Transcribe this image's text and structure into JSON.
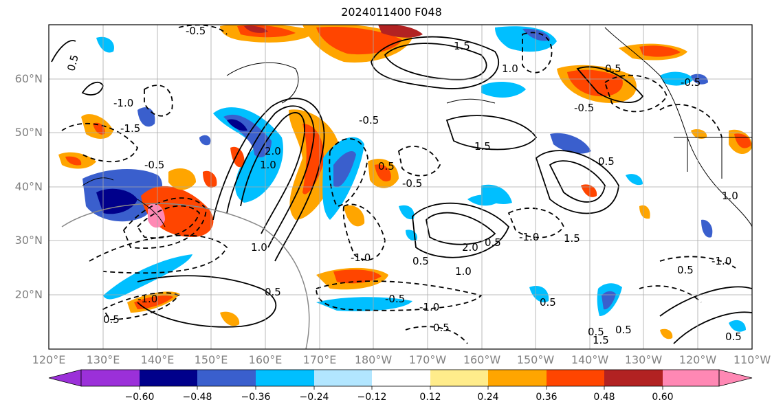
{
  "title": "2024011400 F048",
  "map": {
    "lat_ticks": [
      "60°N",
      "50°N",
      "40°N",
      "30°N",
      "20°N"
    ],
    "lon_ticks": [
      "120°E",
      "130°E",
      "140°E",
      "150°E",
      "160°E",
      "170°E",
      "180°W",
      "170°W",
      "160°W",
      "150°W",
      "140°W",
      "130°W",
      "120°W",
      "110°W"
    ],
    "contour_labels": [
      "0.5",
      "1.0",
      "1.5",
      "2.0",
      "-0.5",
      "-1.0",
      "-1.5",
      "-2.0"
    ]
  },
  "colorbar": {
    "tick_labels": [
      "−0.60",
      "−0.48",
      "−0.36",
      "−0.24",
      "−0.12",
      "0.12",
      "0.24",
      "0.36",
      "0.48",
      "0.60"
    ],
    "colors": [
      "#9b30d9",
      "#00008b",
      "#3a5fcd",
      "#00bfff",
      "#b2e6ff",
      "#ffffff",
      "#ffec8b",
      "#ffa500",
      "#ff4500",
      "#b22222",
      "#ff88b4"
    ]
  }
}
